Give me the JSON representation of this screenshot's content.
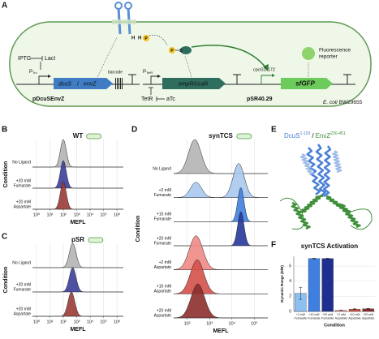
{
  "panel_labels": [
    "A",
    "B",
    "C",
    "D",
    "E",
    "F"
  ],
  "diagram": {
    "inducer_1": "IPTG",
    "repressor_1": "LacI",
    "promoter_1": {
      "main": "P",
      "sub": "Trc"
    },
    "gene_1a": "dcuS",
    "gene_sep": "/",
    "gene_1b": "envZ",
    "barcode": "barcode",
    "plasmid_1": "pDcuSEnvZ",
    "promoter_2": {
      "main": "P",
      "sub": "TetR"
    },
    "repressor_2": "TetR",
    "inducer_2": "aTc",
    "gene_2": "ompR/ccaR",
    "promoter_3": "cpcG2-172",
    "gene_3": "sfGFP",
    "plasmid_2": "pSR40.29",
    "reporter": [
      "Fluorescence",
      "reporter"
    ],
    "strain_species": "E. coli",
    "strain_name": "BW29655",
    "receptor_labels": [
      "H",
      "H",
      "P"
    ],
    "regulator_labels": [
      "P",
      "D"
    ]
  },
  "structure": {
    "part_1": "DcuS",
    "sup_1": "1-193",
    "separator": "/",
    "part_2": "EnvZ",
    "sup_2": "230-451",
    "color_1": "#4a7fd8",
    "color_2": "#3f8f3a"
  },
  "chart_data": [
    {
      "type": "ridgeline",
      "title": "WT",
      "xlabel": "MEFL",
      "ylabel": "Condition",
      "log_x": true,
      "xlim": [
        0.5,
        3000000
      ],
      "xticks": [
        {
          "value": 1,
          "label": "10⁰"
        },
        {
          "value": 10,
          "label": "10¹"
        },
        {
          "value": 100,
          "label": "10²"
        },
        {
          "value": 1000,
          "label": "10³"
        },
        {
          "value": 10000,
          "label": "10⁴"
        },
        {
          "value": 100000,
          "label": "10⁵"
        },
        {
          "value": 1000000,
          "label": "10⁶"
        }
      ],
      "grid": true,
      "categories": [
        [
          "No Ligand"
        ],
        [
          "+20 mM",
          "Fumarate"
        ],
        [
          "+20 mM",
          "Aspartate"
        ]
      ],
      "series": [
        {
          "color": "#b4b4b4",
          "peaks": [
            100
          ],
          "heights": [
            1
          ],
          "width": 0.22
        },
        {
          "color": "#3c3f9a",
          "peaks": [
            100
          ],
          "heights": [
            1
          ],
          "width": 0.22
        },
        {
          "color": "#9b3a37",
          "peaks": [
            100
          ],
          "heights": [
            1
          ],
          "width": 0.22
        }
      ]
    },
    {
      "type": "ridgeline",
      "title": "pSR",
      "xlabel": "MEFL",
      "ylabel": "Condition",
      "log_x": true,
      "xlim": [
        0.5,
        3000000
      ],
      "xticks": [
        {
          "value": 1,
          "label": "10⁰"
        },
        {
          "value": 10,
          "label": "10¹"
        },
        {
          "value": 100,
          "label": "10²"
        },
        {
          "value": 1000,
          "label": "10³"
        },
        {
          "value": 10000,
          "label": "10⁴"
        },
        {
          "value": 100000,
          "label": "10⁵"
        },
        {
          "value": 1000000,
          "label": "10⁶"
        }
      ],
      "grid": true,
      "categories": [
        [
          "No Ligand"
        ],
        [
          "+20 mM",
          "Fumarate"
        ],
        [
          "+20 mM",
          "Aspartate"
        ]
      ],
      "series": [
        {
          "color": "#b4b4b4",
          "peaks": [
            500
          ],
          "heights": [
            1
          ],
          "width": 0.25
        },
        {
          "color": "#3c3f9a",
          "peaks": [
            500
          ],
          "heights": [
            1
          ],
          "width": 0.25
        },
        {
          "color": "#9b3a37",
          "peaks": [
            400
          ],
          "heights": [
            1
          ],
          "width": 0.25
        }
      ]
    },
    {
      "type": "ridgeline",
      "title": "synTCS",
      "xlabel": "MEFL",
      "ylabel": "Condition",
      "log_x": true,
      "xlim": [
        25,
        400000
      ],
      "xticks": [
        {
          "value": 100,
          "label": "10²"
        },
        {
          "value": 1000,
          "label": "10³"
        },
        {
          "value": 10000,
          "label": "10⁴"
        },
        {
          "value": 100000,
          "label": "10⁵"
        }
      ],
      "grid": true,
      "categories": [
        [
          "No Ligand"
        ],
        [
          "+2 mM",
          "Fumarate"
        ],
        [
          "+10 mM",
          "Fumarate"
        ],
        [
          "+20 mM",
          "Fumarate"
        ],
        [
          "+2 mM",
          "Aspartate"
        ],
        [
          "+10 mM",
          "Aspartate"
        ],
        [
          "+20 mM",
          "Aspartate"
        ]
      ],
      "series": [
        {
          "color": "#b4b4b4",
          "peaks": [
            220
          ],
          "heights": [
            1
          ],
          "width": 0.28
        },
        {
          "color": "#a9c9ee",
          "peaks": [
            250,
            20000
          ],
          "heights": [
            0.45,
            1
          ],
          "width": 0.25
        },
        {
          "color": "#3f7fe0",
          "peaks": [
            25000
          ],
          "heights": [
            1
          ],
          "width": 0.14
        },
        {
          "color": "#26379a",
          "peaks": [
            25000
          ],
          "heights": [
            1
          ],
          "width": 0.14
        },
        {
          "color": "#f08a86",
          "peaks": [
            250
          ],
          "heights": [
            1
          ],
          "width": 0.3
        },
        {
          "color": "#d4504a",
          "peaks": [
            280
          ],
          "heights": [
            1
          ],
          "width": 0.3
        },
        {
          "color": "#8b2f2c",
          "peaks": [
            300
          ],
          "heights": [
            1
          ],
          "width": 0.3
        }
      ]
    },
    {
      "type": "bar",
      "title": "synTCS Activation",
      "xlabel": "Condition",
      "ylabel": "Dynamic Range (D/R)",
      "categories": [
        [
          "+2 mM",
          "Fumarate"
        ],
        [
          "+10 mM",
          "Fumarate"
        ],
        [
          "+20 mM",
          "Fumarate"
        ],
        [
          "+2 mM",
          "Aspartate"
        ],
        [
          "+10 mM",
          "Aspartate"
        ],
        [
          "+20 mM",
          "Aspartate"
        ]
      ],
      "values": [
        2.4,
        7.0,
        7.0,
        0.15,
        0.3,
        0.35
      ],
      "errors": [
        0.8,
        0.05,
        0.05,
        0.02,
        0.05,
        0.05
      ],
      "colors": [
        "#8cc0f0",
        "#3f7fe0",
        "#1f2f8f",
        "#f29b96",
        "#d4504a",
        "#8b2f2c"
      ],
      "ylim": [
        0,
        7.3
      ],
      "yticks": [
        0,
        2,
        4,
        6
      ],
      "grid": true
    }
  ]
}
